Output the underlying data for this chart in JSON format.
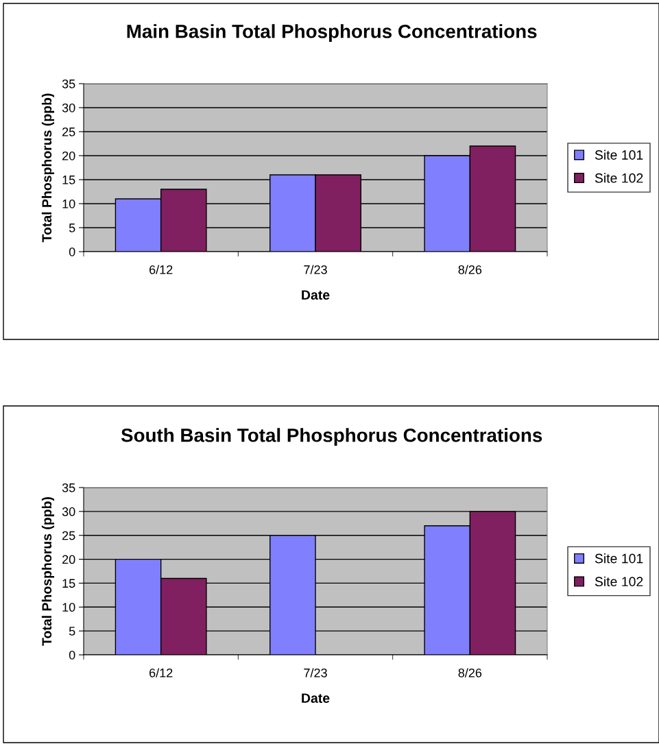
{
  "chart_data": [
    {
      "type": "bar",
      "title": "Main Basin Total Phosphorus Concentrations",
      "xlabel": "Date",
      "ylabel": "Total Phosphorus (ppb)",
      "categories": [
        "6/12",
        "7/23",
        "8/26"
      ],
      "series": [
        {
          "name": "Site 101",
          "color": "#8080ff",
          "values": [
            11,
            16,
            20
          ]
        },
        {
          "name": "Site 102",
          "color": "#802060",
          "values": [
            13,
            16,
            22
          ]
        }
      ],
      "ylim": [
        0,
        35
      ],
      "yticks": [
        0,
        5,
        10,
        15,
        20,
        25,
        30,
        35
      ],
      "grid": "y",
      "legend": "right"
    },
    {
      "type": "bar",
      "title": "South Basin Total Phosphorus Concentrations",
      "xlabel": "Date",
      "ylabel": "Total Phosphorus (ppb)",
      "categories": [
        "6/12",
        "7/23",
        "8/26"
      ],
      "series": [
        {
          "name": "Site 101",
          "color": "#8080ff",
          "values": [
            20,
            25,
            27
          ]
        },
        {
          "name": "Site 102",
          "color": "#802060",
          "values": [
            16,
            null,
            30
          ]
        }
      ],
      "ylim": [
        0,
        35
      ],
      "yticks": [
        0,
        5,
        10,
        15,
        20,
        25,
        30,
        35
      ],
      "grid": "y",
      "legend": "right"
    }
  ]
}
